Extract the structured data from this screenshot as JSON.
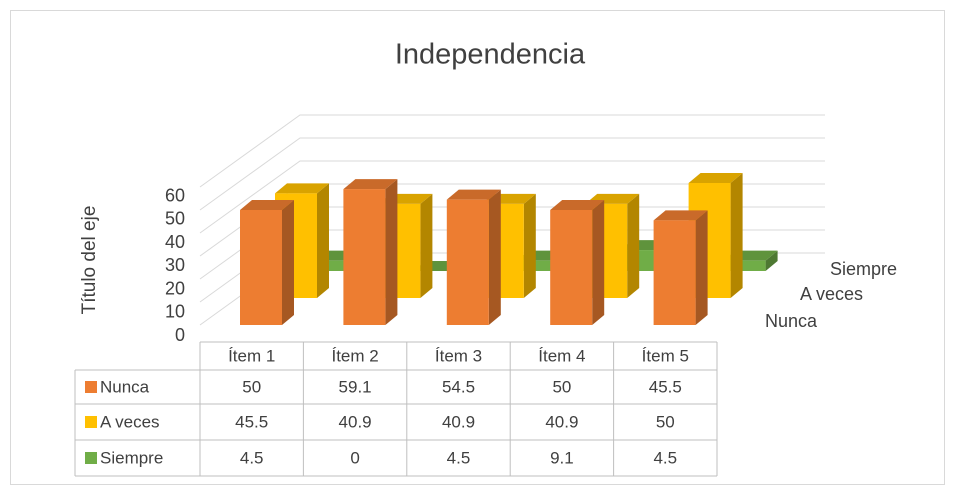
{
  "chart_data": {
    "type": "bar3d",
    "title": "Independencia",
    "y_label": "Título del eje",
    "categories": [
      "Ítem 1",
      "Ítem 2",
      "Ítem 3",
      "Ítem 4",
      "Ítem 5"
    ],
    "series": [
      {
        "name": "Nunca",
        "color": "#ED7D31",
        "values": [
          50,
          59.1,
          54.5,
          50,
          45.5
        ]
      },
      {
        "name": "A veces",
        "color": "#FFC000",
        "values": [
          45.5,
          40.9,
          40.9,
          40.9,
          50
        ]
      },
      {
        "name": "Siempre",
        "color": "#70AD47",
        "values": [
          4.5,
          0,
          4.5,
          9.1,
          4.5
        ]
      }
    ],
    "ylim": [
      0,
      60
    ],
    "yticks": [
      0,
      10,
      20,
      30,
      40,
      50,
      60
    ],
    "grid": true,
    "data_table": true
  }
}
